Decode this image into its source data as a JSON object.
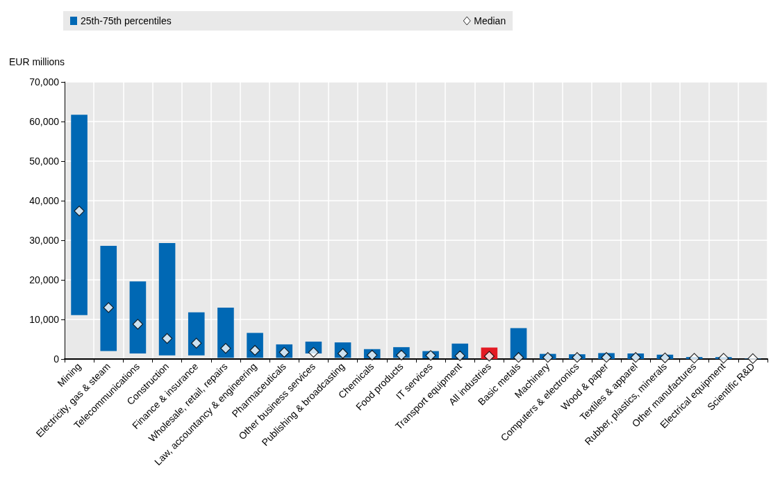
{
  "chart_data": {
    "type": "bar",
    "ylabel": "EUR millions",
    "categories": [
      "Mining",
      "Electricity, gas & steam",
      "Telecommunications",
      "Construction",
      "Finance & insurance",
      "Wholesale, retail, repairs",
      "Law, accountancy & engineering",
      "Pharmaceuticals",
      "Other business services",
      "Publishing & broadcasting",
      "Chemicals",
      "Food products",
      "IT services",
      "Transport equipment",
      "All industries",
      "Basic metals",
      "Machinery",
      "Computers & electronics",
      "Wood & paper",
      "Textiles & apparel",
      "Rubber, plastics, minerals",
      "Other manufactures",
      "Electrical equipment",
      "Scientific R&D"
    ],
    "series": [
      {
        "name": "25th-75th percentiles",
        "color": "#0068b4",
        "colors": [
          "#0068b4",
          "#0068b4",
          "#0068b4",
          "#0068b4",
          "#0068b4",
          "#0068b4",
          "#0068b4",
          "#0068b4",
          "#0068b4",
          "#0068b4",
          "#0068b4",
          "#0068b4",
          "#0068b4",
          "#0068b4",
          "#e31a23",
          "#0068b4",
          "#0068b4",
          "#0068b4",
          "#0068b4",
          "#0068b4",
          "#0068b4",
          "#0068b4",
          "#0068b4",
          "#0068b4"
        ],
        "base": [
          11100,
          2000,
          1400,
          900,
          900,
          300,
          300,
          300,
          1400,
          300,
          200,
          300,
          200,
          100,
          0,
          100,
          0,
          0,
          0,
          0,
          0,
          0,
          0,
          0
        ],
        "values": [
          50600,
          26600,
          18200,
          28400,
          10900,
          12700,
          6300,
          3400,
          3000,
          3900,
          2300,
          2700,
          1800,
          3800,
          2900,
          7700,
          1300,
          1200,
          1500,
          1400,
          1100,
          500,
          500,
          100
        ]
      },
      {
        "type": "scatter",
        "name": "Median",
        "color": "#ffffff",
        "marker": "diamond",
        "x": [
          "Mining",
          "Electricity, gas & steam",
          "Telecommunications",
          "Construction",
          "Finance & insurance",
          "Wholesale, retail, repairs",
          "Law, accountancy & engineering",
          "Pharmaceuticals",
          "Other business services",
          "Publishing & broadcasting",
          "Chemicals",
          "Food products",
          "IT services",
          "Transport equipment",
          "All industries",
          "Basic metals",
          "Machinery",
          "Computers & electronics",
          "Wood & paper",
          "Textiles & apparel",
          "Rubber, plastics, minerals",
          "Other manufactures",
          "Electrical equipment",
          "Scientific R&D"
        ],
        "values": [
          37400,
          13000,
          8800,
          5200,
          4000,
          2700,
          2200,
          1700,
          1700,
          1400,
          1000,
          1000,
          900,
          800,
          700,
          400,
          400,
          400,
          400,
          400,
          300,
          200,
          200,
          100
        ]
      }
    ],
    "ylim": [
      0,
      70000
    ],
    "yticks": [
      {
        "value": 0,
        "label": "0"
      },
      {
        "value": 10000,
        "label": "10,000"
      },
      {
        "value": 20000,
        "label": "20,000"
      },
      {
        "value": 30000,
        "label": "30,000"
      },
      {
        "value": 40000,
        "label": "40,000"
      },
      {
        "value": 50000,
        "label": "50,000"
      },
      {
        "value": 60000,
        "label": "60,000"
      },
      {
        "value": 70000,
        "label": "70,000"
      }
    ],
    "grid": true,
    "legend": "top"
  }
}
